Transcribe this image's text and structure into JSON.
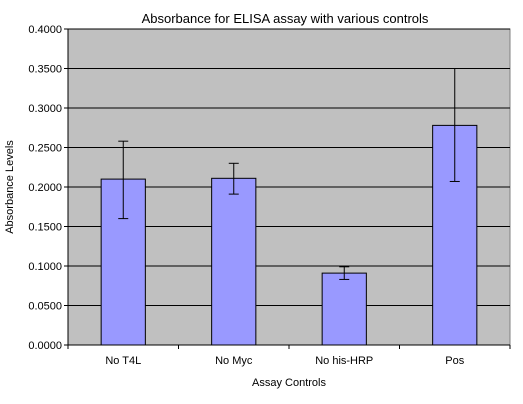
{
  "chart_data": {
    "type": "bar",
    "title": "Absorbance for ELISA assay with various controls",
    "xlabel": "Assay Controls",
    "ylabel": "Absorbance Levels",
    "categories": [
      "No T4L",
      "No Myc",
      "No his-HRP",
      "Pos"
    ],
    "series": [
      {
        "values": [
          0.21,
          0.211,
          0.091,
          0.278
        ],
        "error_low": [
          0.16,
          0.191,
          0.083,
          0.207
        ],
        "error_high": [
          0.258,
          0.23,
          0.099,
          0.35
        ]
      }
    ],
    "ylim": [
      0,
      0.4
    ],
    "yticks": [
      "0.0000",
      "0.0500",
      "0.1000",
      "0.1500",
      "0.2000",
      "0.2500",
      "0.3000",
      "0.3500",
      "0.4000"
    ],
    "grid": true,
    "legend": "none",
    "colors": {
      "bar_fill": "#9999ff",
      "plot_background": "#c0c0c0",
      "gridline": "#000000"
    }
  }
}
